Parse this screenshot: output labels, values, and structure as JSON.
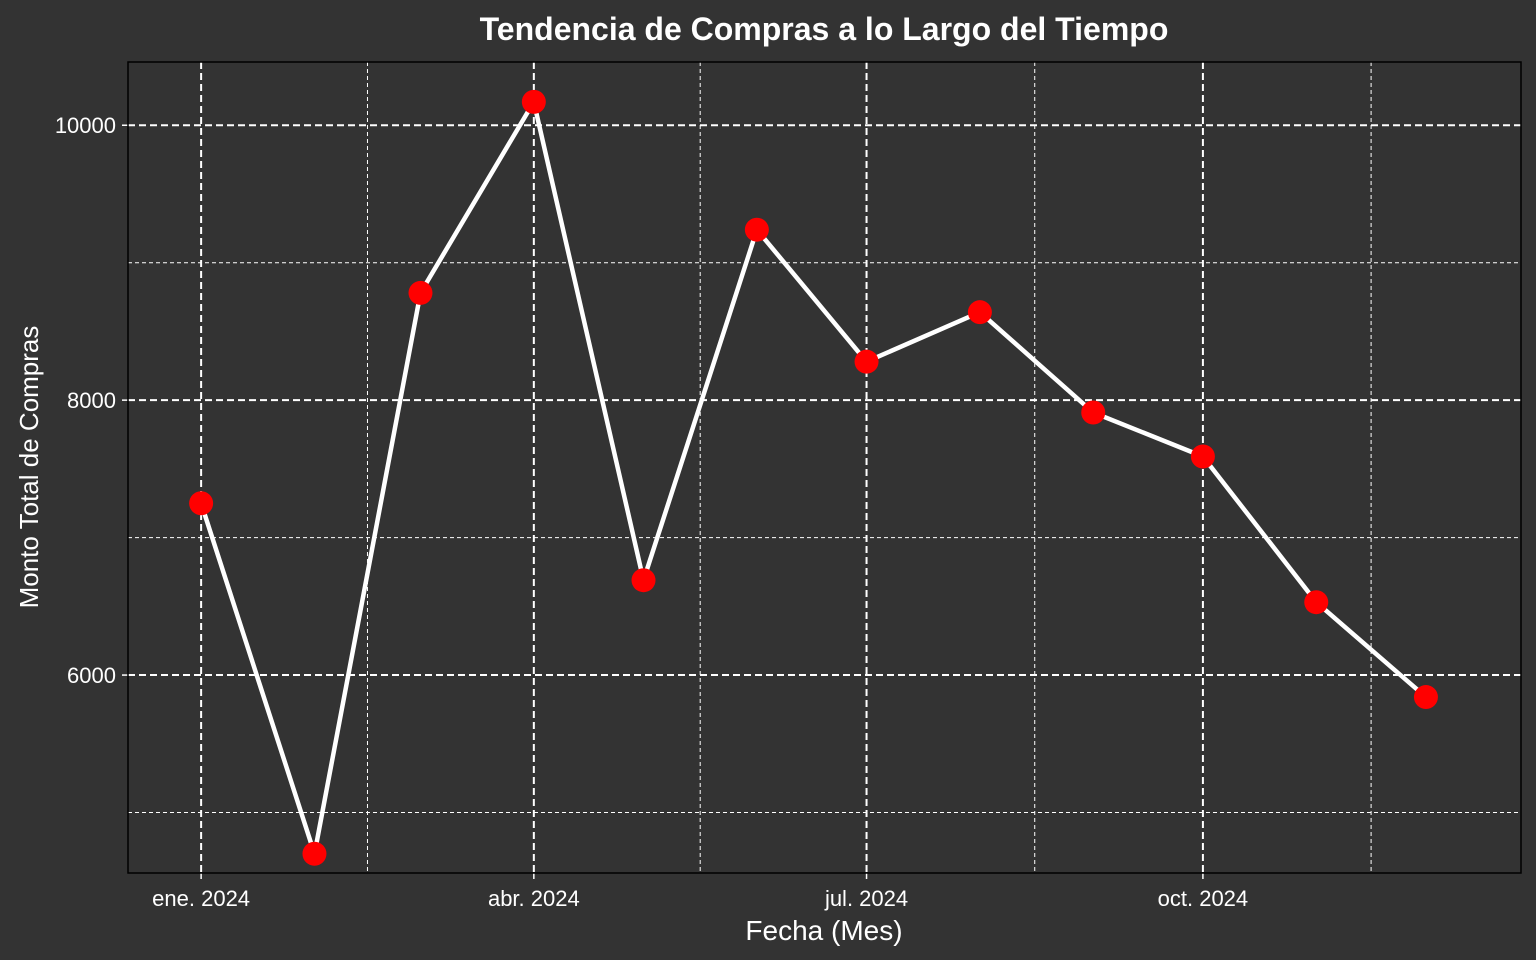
{
  "chart_data": {
    "type": "line",
    "title": "Tendencia de Compras a lo Largo del Tiempo",
    "xlabel": "Fecha (Mes)",
    "ylabel": "Monto Total de Compras",
    "x_tick_labels": [
      "ene. 2024",
      "abr. 2024",
      "jul. 2024",
      "oct. 2024"
    ],
    "x_tick_dates": [
      "2024-01-01",
      "2024-04-01",
      "2024-07-01",
      "2024-10-01"
    ],
    "y_ticks": [
      6000,
      8000,
      10000
    ],
    "y_ticks_minor": [
      5000,
      7000,
      9000
    ],
    "xlim": [
      "2023-12-12",
      "2024-12-27"
    ],
    "ylim": [
      4560,
      10460
    ],
    "grid": true,
    "legend": "none",
    "colors": {
      "background": "#333333",
      "line": "#ffffff",
      "points": "#ff0000",
      "grid": "#ffffff",
      "text": "#ffffff"
    },
    "points": [
      {
        "x": "2024-01-01",
        "y": 7250
      },
      {
        "x": "2024-02-01",
        "y": 4700
      },
      {
        "x": "2024-03-01",
        "y": 8780
      },
      {
        "x": "2024-04-01",
        "y": 10170
      },
      {
        "x": "2024-05-01",
        "y": 6690
      },
      {
        "x": "2024-06-01",
        "y": 9240
      },
      {
        "x": "2024-07-01",
        "y": 8280
      },
      {
        "x": "2024-08-01",
        "y": 8640
      },
      {
        "x": "2024-09-01",
        "y": 7910
      },
      {
        "x": "2024-10-01",
        "y": 7590
      },
      {
        "x": "2024-11-01",
        "y": 6530
      },
      {
        "x": "2024-12-01",
        "y": 5840
      }
    ]
  }
}
